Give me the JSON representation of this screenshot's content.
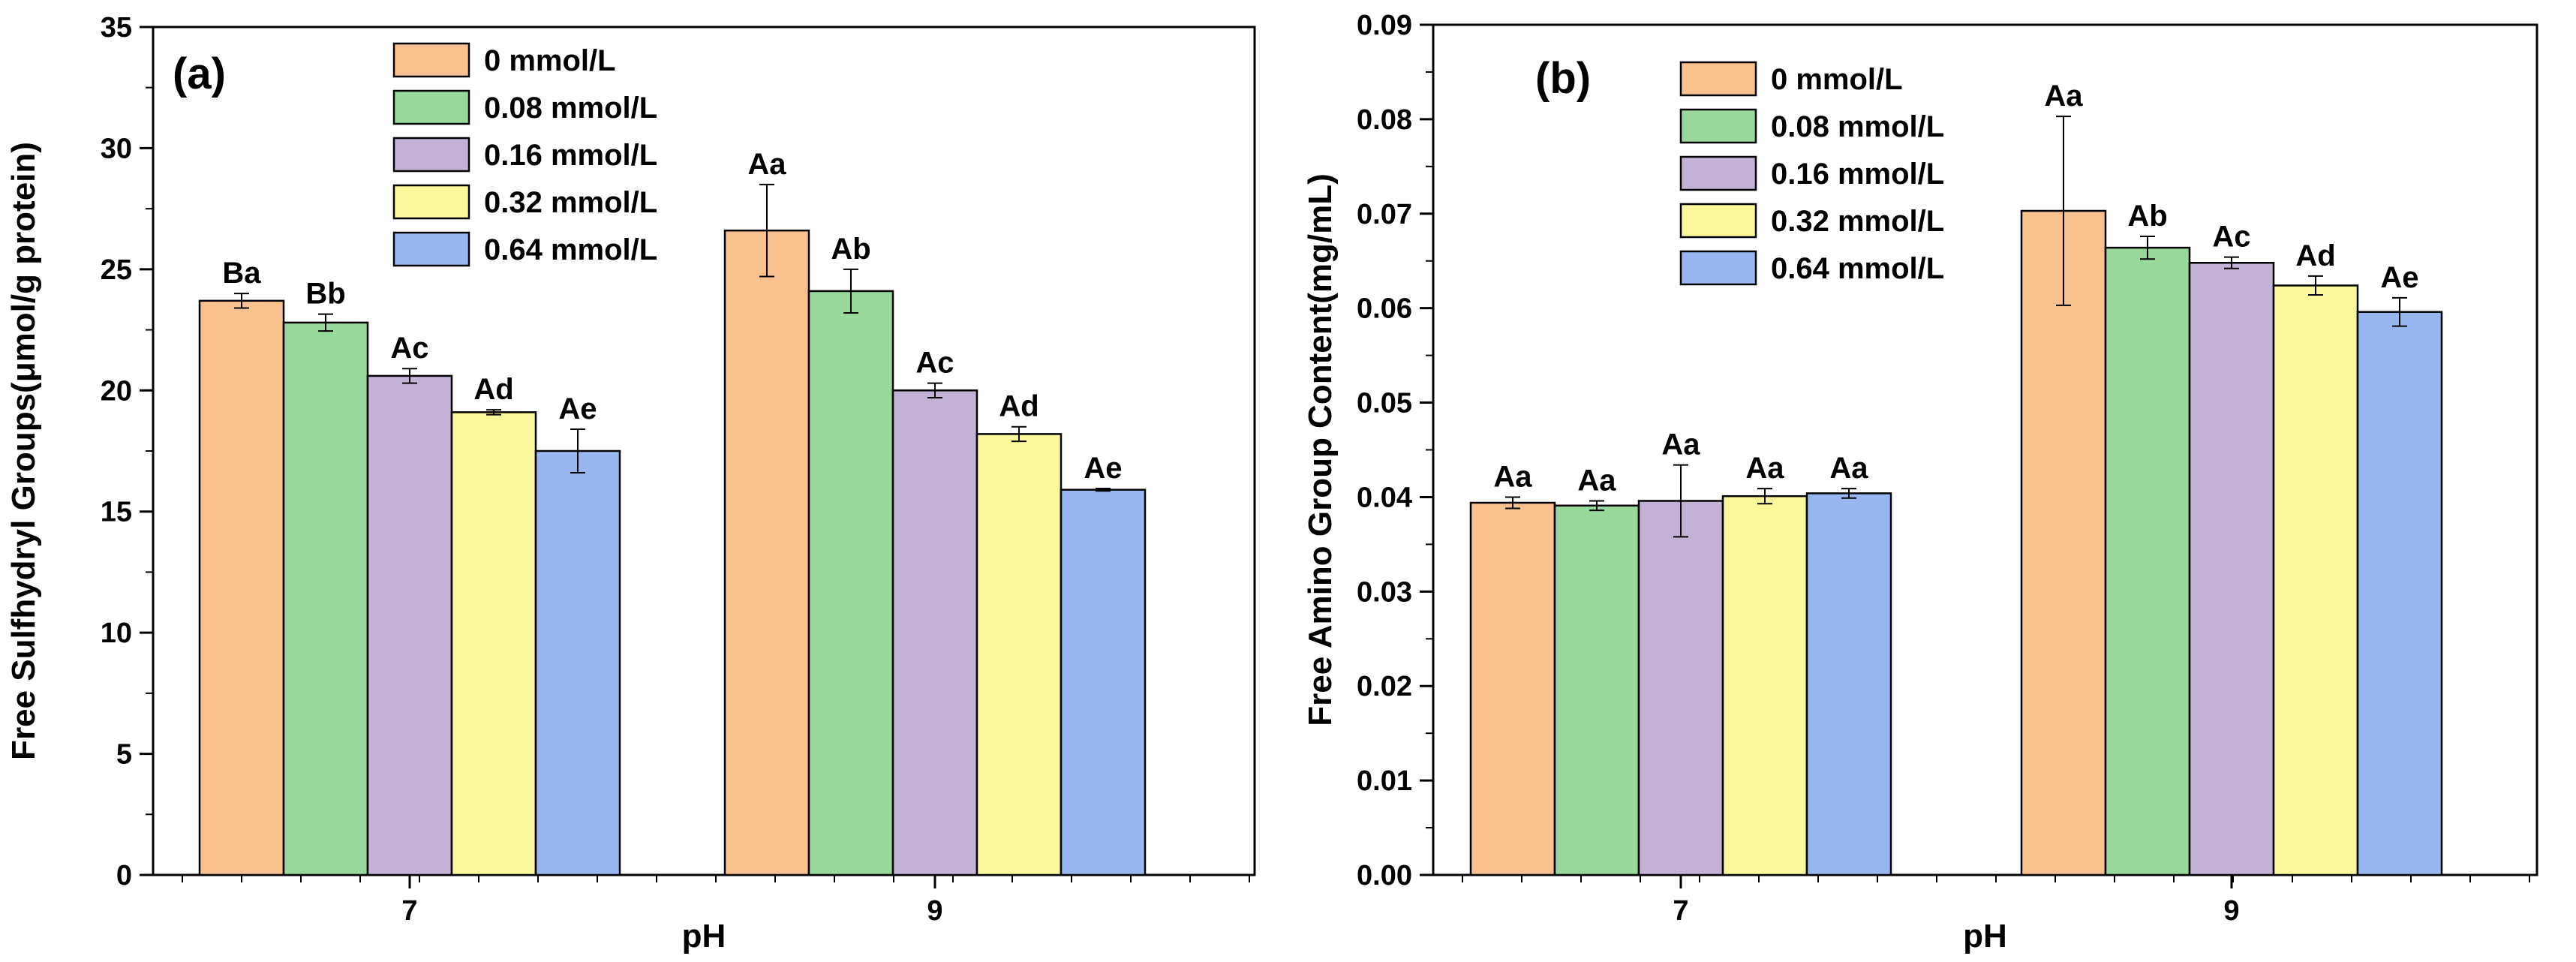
{
  "chart_data": [
    {
      "type": "bar",
      "panel": "(a)",
      "xlabel": "pH",
      "ylabel": "Free Sulfhydryl Groups(μmol/g protein)",
      "categories": [
        "7",
        "9"
      ],
      "ylim": [
        0,
        35
      ],
      "yticks": [
        "0",
        "5",
        "10",
        "15",
        "20",
        "25",
        "30",
        "35"
      ],
      "ytick_values": [
        0,
        5,
        10,
        15,
        20,
        25,
        30,
        35
      ],
      "legend_position": "top-center",
      "series": [
        {
          "name": "0 mmol/L",
          "color": "#F9C18E",
          "values": [
            23.7,
            26.6
          ],
          "errors": [
            0.3,
            1.9
          ],
          "labels": [
            "Ba",
            "Aa"
          ]
        },
        {
          "name": "0.08 mmol/L",
          "color": "#98D89B",
          "values": [
            22.8,
            24.1
          ],
          "errors": [
            0.35,
            0.9
          ],
          "labels": [
            "Bb",
            "Ab"
          ]
        },
        {
          "name": "0.16 mmol/L",
          "color": "#C3B1D6",
          "values": [
            20.6,
            20.0
          ],
          "errors": [
            0.3,
            0.3
          ],
          "labels": [
            "Ac",
            "Ac"
          ]
        },
        {
          "name": "0.32 mmol/L",
          "color": "#FBF79B",
          "values": [
            19.1,
            18.2
          ],
          "errors": [
            0.1,
            0.3
          ],
          "labels": [
            "Ad",
            "Ad"
          ]
        },
        {
          "name": "0.64 mmol/L",
          "color": "#98B7F1",
          "values": [
            17.5,
            15.9
          ],
          "errors": [
            0.9,
            0.05
          ],
          "labels": [
            "Ae",
            "Ae"
          ]
        }
      ]
    },
    {
      "type": "bar",
      "panel": "(b)",
      "xlabel": "pH",
      "ylabel": "Free Amino Group  Content(mg/mL)",
      "categories": [
        "7",
        "9"
      ],
      "ylim": [
        0,
        0.09
      ],
      "yticks": [
        "0.00",
        "0.01",
        "0.02",
        "0.03",
        "0.04",
        "0.05",
        "0.06",
        "0.07",
        "0.08",
        "0.09"
      ],
      "ytick_values": [
        0,
        0.01,
        0.02,
        0.03,
        0.04,
        0.05,
        0.06,
        0.07,
        0.08,
        0.09
      ],
      "legend_position": "top-left",
      "series": [
        {
          "name": "0 mmol/L",
          "color": "#F9C18E",
          "values": [
            0.0394,
            0.0703
          ],
          "errors": [
            0.0006,
            0.01
          ],
          "labels": [
            "Aa",
            "Aa"
          ]
        },
        {
          "name": "0.08 mmol/L",
          "color": "#98D89B",
          "values": [
            0.0391,
            0.0664
          ],
          "errors": [
            0.0005,
            0.0012
          ],
          "labels": [
            "Aa",
            "Ab"
          ]
        },
        {
          "name": "0.16 mmol/L",
          "color": "#C3B1D6",
          "values": [
            0.0396,
            0.0648
          ],
          "errors": [
            0.0038,
            0.0006
          ],
          "labels": [
            "Aa",
            "Ac"
          ]
        },
        {
          "name": "0.32 mmol/L",
          "color": "#FBF79B",
          "values": [
            0.0401,
            0.0624
          ],
          "errors": [
            0.0008,
            0.001
          ],
          "labels": [
            "Aa",
            "Ad"
          ]
        },
        {
          "name": "0.64 mmol/L",
          "color": "#98B7F1",
          "values": [
            0.0404,
            0.0596
          ],
          "errors": [
            0.0005,
            0.0015
          ],
          "labels": [
            "Aa",
            "Ae"
          ]
        }
      ]
    }
  ]
}
